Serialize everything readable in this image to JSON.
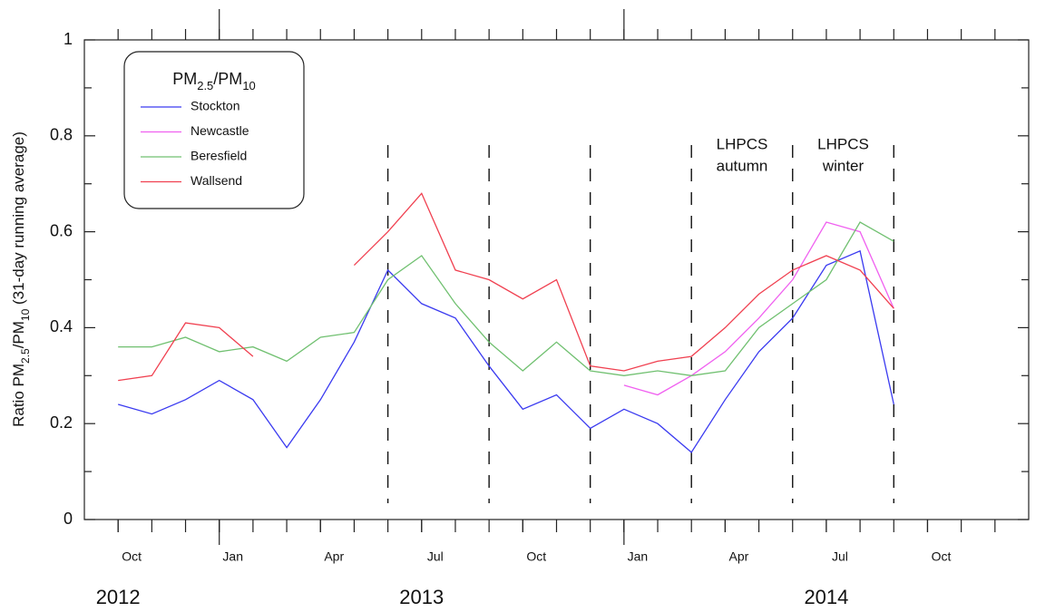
{
  "chart_data": {
    "type": "line",
    "ylabel_parts": [
      {
        "text": "Ratio PM",
        "sub": false
      },
      {
        "text": "2.5",
        "sub": true
      },
      {
        "text": "/PM",
        "sub": false
      },
      {
        "text": "10",
        "sub": true
      },
      {
        "text": " (31-day running average)",
        "sub": false
      }
    ],
    "legend_title_parts": [
      {
        "text": "PM",
        "sub": false
      },
      {
        "text": "2.5",
        "sub": true
      },
      {
        "text": "/PM",
        "sub": false
      },
      {
        "text": "10",
        "sub": true
      }
    ],
    "x": [
      "2012-10",
      "2012-11",
      "2012-12",
      "2013-01",
      "2013-02",
      "2013-03",
      "2013-04",
      "2013-05",
      "2013-06",
      "2013-07",
      "2013-08",
      "2013-09",
      "2013-10",
      "2013-11",
      "2013-12",
      "2014-01",
      "2014-02",
      "2014-03",
      "2014-04",
      "2014-05",
      "2014-06",
      "2014-07",
      "2014-08",
      "2014-09"
    ],
    "series": [
      {
        "name": "Stockton",
        "color": "#3a3af0",
        "values": [
          0.24,
          0.22,
          0.25,
          0.29,
          0.25,
          0.15,
          0.25,
          0.37,
          0.52,
          0.45,
          0.42,
          0.32,
          0.23,
          0.26,
          0.19,
          0.23,
          0.2,
          0.14,
          0.25,
          0.35,
          0.42,
          0.53,
          0.56,
          0.24
        ]
      },
      {
        "name": "Newcastle",
        "color": "#f060f0",
        "values": [
          null,
          null,
          null,
          null,
          null,
          null,
          null,
          null,
          null,
          null,
          null,
          null,
          null,
          null,
          null,
          0.28,
          0.26,
          0.3,
          0.35,
          0.42,
          0.5,
          0.62,
          0.6,
          0.44
        ]
      },
      {
        "name": "Beresfield",
        "color": "#70c070",
        "values": [
          0.36,
          0.36,
          0.38,
          0.35,
          0.36,
          0.33,
          0.38,
          0.39,
          0.5,
          0.55,
          0.45,
          0.37,
          0.31,
          0.37,
          0.31,
          0.3,
          0.31,
          0.3,
          0.31,
          0.4,
          0.45,
          0.5,
          0.62,
          0.58
        ]
      },
      {
        "name": "Wallsend",
        "color": "#f04050",
        "values": [
          0.29,
          0.3,
          0.41,
          0.4,
          0.34,
          null,
          null,
          0.53,
          0.6,
          0.68,
          0.52,
          0.5,
          0.46,
          0.5,
          0.32,
          0.31,
          0.33,
          0.34,
          0.4,
          0.47,
          0.52,
          0.55,
          0.52,
          0.44
        ]
      }
    ],
    "xlim": [
      "2012-09",
      "2015-01"
    ],
    "xticks": [
      {
        "value": "2012-10",
        "label": "Oct"
      },
      {
        "value": "2013-01",
        "label": "Jan"
      },
      {
        "value": "2013-04",
        "label": "Apr"
      },
      {
        "value": "2013-07",
        "label": "Jul"
      },
      {
        "value": "2013-10",
        "label": "Oct"
      },
      {
        "value": "2014-01",
        "label": "Jan"
      },
      {
        "value": "2014-04",
        "label": "Apr"
      },
      {
        "value": "2014-07",
        "label": "Jul"
      },
      {
        "value": "2014-10",
        "label": "Oct"
      }
    ],
    "major_xticks": [
      "2013-01",
      "2014-01"
    ],
    "year_labels": [
      {
        "value": "2012-10",
        "label": "2012"
      },
      {
        "value": "2013-07",
        "label": "2013"
      },
      {
        "value": "2014-07",
        "label": "2014"
      }
    ],
    "ylim": [
      0,
      1
    ],
    "yticks": [
      0,
      0.2,
      0.4,
      0.6,
      0.8,
      1
    ],
    "season_lines": [
      "2013-06",
      "2013-09",
      "2013-12",
      "2014-03",
      "2014-06",
      "2014-09"
    ],
    "annotations": [
      {
        "lines": [
          "LHPCS",
          "autumn"
        ]
      },
      {
        "lines": [
          "LHPCS",
          "winter"
        ]
      }
    ]
  }
}
